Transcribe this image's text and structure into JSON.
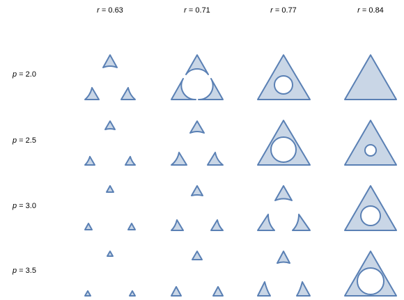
{
  "columns": [
    {
      "var": "r",
      "value": "0.63"
    },
    {
      "var": "r",
      "value": "0.71"
    },
    {
      "var": "r",
      "value": "0.77"
    },
    {
      "var": "r",
      "value": "0.84"
    }
  ],
  "rows": [
    {
      "var": "p",
      "value": "2.0"
    },
    {
      "var": "p",
      "value": "2.5"
    },
    {
      "var": "p",
      "value": "3.0"
    },
    {
      "var": "p",
      "value": "3.5"
    }
  ],
  "colors": {
    "fill": "#c9d6e6",
    "stroke": "#5a80b4"
  }
}
